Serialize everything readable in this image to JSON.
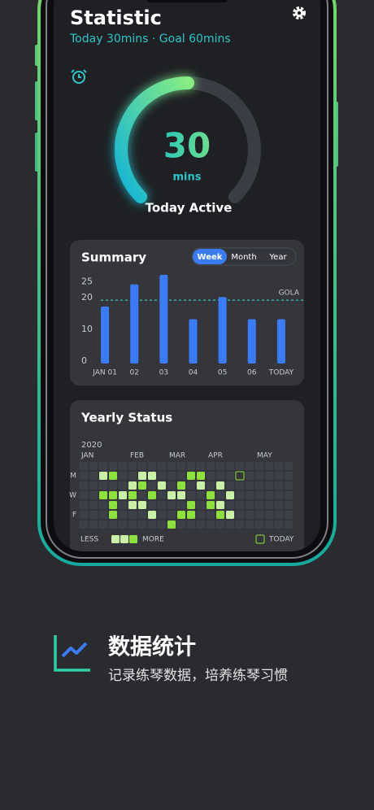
{
  "header": {
    "title": "Statistic",
    "subtitle": "Today 30mins · Goal 60mins"
  },
  "gauge": {
    "value": 30,
    "goal": 60,
    "unit": "mins",
    "label": "Today Active"
  },
  "summary": {
    "title": "Summary",
    "tabs": [
      "Week",
      "Month",
      "Year"
    ],
    "active_tab": 0,
    "chart_data": {
      "type": "bar",
      "categories": [
        "JAN 01",
        "02",
        "03",
        "04",
        "05",
        "06",
        "TODAY"
      ],
      "values": [
        18,
        25,
        28,
        14,
        21,
        14,
        14
      ],
      "color": "#3b7cf6",
      "ylim": [
        0,
        28
      ],
      "yticks": [
        0,
        10,
        20,
        25
      ],
      "goal": 20,
      "goal_label": "GOLA"
    }
  },
  "yearly": {
    "title": "Yearly Status",
    "year": "2020",
    "months": [
      "JAN",
      "FEB",
      "MAR",
      "APR",
      "MAY"
    ],
    "days": [
      "M",
      "W",
      "F"
    ],
    "levels": [
      [
        0,
        0,
        0,
        0,
        0,
        0,
        0,
        0,
        0,
        0,
        0,
        0,
        0,
        0,
        0,
        0,
        0,
        0,
        0,
        0,
        0,
        0
      ],
      [
        0,
        0,
        1,
        2,
        0,
        0,
        1,
        1,
        0,
        0,
        0,
        2,
        2,
        0,
        0,
        0,
        0,
        0,
        0,
        0,
        0,
        0
      ],
      [
        0,
        0,
        0,
        0,
        0,
        1,
        2,
        0,
        1,
        0,
        2,
        0,
        1,
        0,
        1,
        0,
        0,
        0,
        0,
        0,
        0,
        0
      ],
      [
        0,
        0,
        2,
        2,
        1,
        2,
        0,
        2,
        0,
        1,
        1,
        0,
        0,
        2,
        0,
        1,
        0,
        0,
        0,
        0,
        0,
        0
      ],
      [
        0,
        0,
        0,
        2,
        0,
        1,
        1,
        0,
        0,
        0,
        0,
        2,
        0,
        2,
        1,
        0,
        0,
        0,
        0,
        0,
        0,
        0
      ],
      [
        0,
        0,
        0,
        2,
        0,
        0,
        0,
        1,
        0,
        0,
        2,
        2,
        0,
        0,
        2,
        1,
        0,
        0,
        0,
        0,
        0,
        0
      ],
      [
        0,
        0,
        0,
        0,
        0,
        0,
        0,
        0,
        0,
        2,
        0,
        0,
        0,
        0,
        0,
        0,
        0,
        0,
        0,
        0,
        0,
        0
      ]
    ],
    "today": [
      1,
      16
    ],
    "colors": [
      "#3d4047",
      "#c9f0a4",
      "#8fe03e"
    ],
    "legend": {
      "less": "LESS",
      "more": "MORE",
      "today": "TODAY"
    }
  },
  "footer": {
    "title": "数据统计",
    "subtitle": "记录练琴数据，培养练琴习惯"
  }
}
